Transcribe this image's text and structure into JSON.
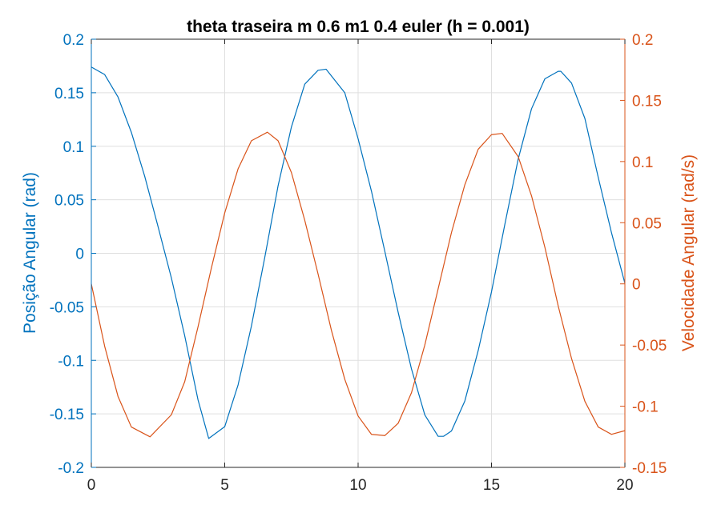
{
  "chart_data": {
    "type": "line",
    "title": "theta traseira m 0.6 m1 0.4 euler (h = 0.001)",
    "xlabel": "",
    "ylabel_left": "Posição Angular (rad)",
    "ylabel_right": "Velocidade Angular (rad/s)",
    "xlim": [
      0,
      20
    ],
    "ylim_left": [
      -0.2,
      0.2
    ],
    "ylim_right": [
      -0.15,
      0.2
    ],
    "x_ticks": [
      "0",
      "5",
      "10",
      "15",
      "20"
    ],
    "y_left_ticks": [
      "-0.2",
      "-0.15",
      "-0.1",
      "-0.05",
      "0",
      "0.05",
      "0.1",
      "0.15",
      "0.2"
    ],
    "y_right_ticks": [
      "-0.15",
      "-0.1",
      "-0.05",
      "0",
      "0.05",
      "0.1",
      "0.15",
      "0.2"
    ],
    "grid": true,
    "colors": {
      "left": "#0072BD",
      "right": "#D95319",
      "grid": "#dfdfdf",
      "axis": "#262626"
    },
    "series": [
      {
        "axis": "left",
        "color": "#0072BD",
        "x": [
          0,
          0.5,
          1,
          1.5,
          2,
          2.5,
          3,
          3.5,
          4,
          4.4,
          5,
          5.5,
          6,
          6.5,
          7,
          7.5,
          8,
          8.5,
          8.8,
          9.5,
          10,
          10.5,
          11,
          11.5,
          12,
          12.5,
          13,
          13.2,
          13.5,
          14,
          14.5,
          15,
          15.5,
          16,
          16.5,
          17,
          17.5,
          17.6,
          18,
          18.5,
          19,
          19.5,
          20
        ],
        "values": [
          0.174,
          0.167,
          0.146,
          0.113,
          0.072,
          0.025,
          -0.023,
          -0.077,
          -0.137,
          -0.173,
          -0.162,
          -0.123,
          -0.068,
          -0.004,
          0.063,
          0.118,
          0.158,
          0.171,
          0.172,
          0.15,
          0.107,
          0.058,
          0.002,
          -0.055,
          -0.108,
          -0.151,
          -0.171,
          -0.171,
          -0.166,
          -0.138,
          -0.091,
          -0.036,
          0.027,
          0.088,
          0.135,
          0.163,
          0.17,
          0.17,
          0.159,
          0.126,
          0.071,
          0.019,
          -0.028
        ]
      },
      {
        "axis": "right",
        "color": "#D95319",
        "x": [
          0,
          0.5,
          1,
          1.5,
          2.2,
          3,
          3.5,
          4,
          4.5,
          5,
          5.5,
          6,
          6.6,
          7,
          7.5,
          8,
          8.5,
          9,
          9.5,
          10,
          10.5,
          11,
          11.5,
          12,
          12.5,
          13,
          13.5,
          14,
          14.5,
          15,
          15.4,
          16,
          16.5,
          17,
          17.5,
          18,
          18.5,
          19,
          19.5,
          20
        ],
        "values": [
          0.0,
          -0.051,
          -0.092,
          -0.117,
          -0.125,
          -0.107,
          -0.08,
          -0.035,
          0.013,
          0.058,
          0.094,
          0.117,
          0.124,
          0.117,
          0.091,
          0.052,
          0.008,
          -0.038,
          -0.078,
          -0.108,
          -0.123,
          -0.124,
          -0.114,
          -0.089,
          -0.05,
          -0.004,
          0.042,
          0.081,
          0.11,
          0.122,
          0.123,
          0.104,
          0.072,
          0.03,
          -0.018,
          -0.061,
          -0.096,
          -0.117,
          -0.123,
          -0.12
        ]
      }
    ]
  }
}
